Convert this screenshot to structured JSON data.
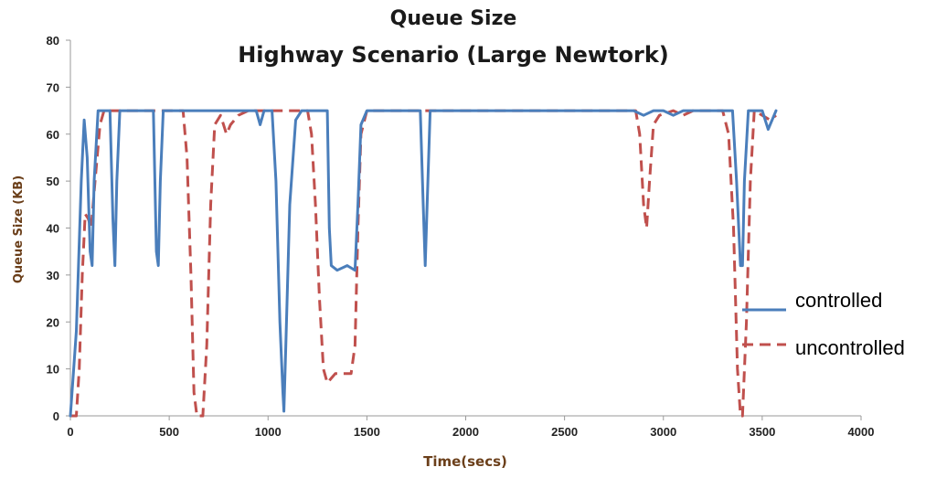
{
  "chart_data": {
    "type": "line",
    "title": "Queue Size",
    "subtitle": "Highway Scenario (Large Newtork)",
    "xlabel": "Time(secs)",
    "ylabel": "Queue Size (KB)",
    "xlim": [
      0,
      4000
    ],
    "ylim": [
      0,
      80
    ],
    "xticks": [
      0,
      500,
      1000,
      1500,
      2000,
      2500,
      3000,
      3500,
      4000
    ],
    "yticks": [
      0,
      10,
      20,
      30,
      40,
      50,
      60,
      70,
      80
    ],
    "grid": false,
    "legend_position": "right",
    "series": [
      {
        "name": "controlled",
        "color": "#4a7ebb",
        "style": "solid",
        "points": [
          [
            0,
            0
          ],
          [
            30,
            18
          ],
          [
            55,
            50
          ],
          [
            70,
            63
          ],
          [
            85,
            55
          ],
          [
            100,
            35
          ],
          [
            110,
            32
          ],
          [
            120,
            50
          ],
          [
            140,
            65
          ],
          [
            200,
            65
          ],
          [
            215,
            42
          ],
          [
            225,
            32
          ],
          [
            235,
            50
          ],
          [
            250,
            65
          ],
          [
            420,
            65
          ],
          [
            435,
            35
          ],
          [
            445,
            32
          ],
          [
            455,
            50
          ],
          [
            470,
            65
          ],
          [
            940,
            65
          ],
          [
            960,
            62
          ],
          [
            980,
            65
          ],
          [
            1020,
            65
          ],
          [
            1040,
            50
          ],
          [
            1060,
            20
          ],
          [
            1075,
            5
          ],
          [
            1080,
            1
          ],
          [
            1090,
            15
          ],
          [
            1110,
            45
          ],
          [
            1140,
            63
          ],
          [
            1170,
            65
          ],
          [
            1300,
            65
          ],
          [
            1310,
            40
          ],
          [
            1320,
            32
          ],
          [
            1350,
            31
          ],
          [
            1400,
            32
          ],
          [
            1440,
            31
          ],
          [
            1455,
            45
          ],
          [
            1470,
            62
          ],
          [
            1500,
            65
          ],
          [
            1770,
            65
          ],
          [
            1785,
            45
          ],
          [
            1795,
            32
          ],
          [
            1805,
            45
          ],
          [
            1820,
            65
          ],
          [
            2850,
            65
          ],
          [
            2900,
            64
          ],
          [
            2950,
            65
          ],
          [
            3000,
            65
          ],
          [
            3050,
            64
          ],
          [
            3100,
            65
          ],
          [
            3350,
            65
          ],
          [
            3370,
            50
          ],
          [
            3390,
            32
          ],
          [
            3400,
            32
          ],
          [
            3410,
            50
          ],
          [
            3430,
            65
          ],
          [
            3500,
            65
          ],
          [
            3530,
            61
          ],
          [
            3550,
            63
          ],
          [
            3570,
            65
          ]
        ]
      },
      {
        "name": "uncontrolled",
        "color": "#c0504d",
        "style": "dashed",
        "points": [
          [
            0,
            0
          ],
          [
            30,
            0
          ],
          [
            45,
            10
          ],
          [
            60,
            30
          ],
          [
            75,
            43
          ],
          [
            90,
            42
          ],
          [
            105,
            40
          ],
          [
            125,
            50
          ],
          [
            150,
            62
          ],
          [
            170,
            65
          ],
          [
            570,
            65
          ],
          [
            590,
            55
          ],
          [
            610,
            30
          ],
          [
            625,
            5
          ],
          [
            640,
            0
          ],
          [
            670,
            0
          ],
          [
            690,
            15
          ],
          [
            710,
            45
          ],
          [
            730,
            62
          ],
          [
            760,
            64
          ],
          [
            790,
            60
          ],
          [
            810,
            62
          ],
          [
            850,
            64
          ],
          [
            900,
            65
          ],
          [
            1200,
            65
          ],
          [
            1220,
            60
          ],
          [
            1240,
            45
          ],
          [
            1260,
            25
          ],
          [
            1280,
            10
          ],
          [
            1300,
            7
          ],
          [
            1320,
            8
          ],
          [
            1340,
            9
          ],
          [
            1380,
            9
          ],
          [
            1420,
            9
          ],
          [
            1440,
            15
          ],
          [
            1455,
            40
          ],
          [
            1470,
            60
          ],
          [
            1500,
            65
          ],
          [
            1550,
            65
          ],
          [
            1600,
            65
          ],
          [
            1650,
            65
          ],
          [
            1700,
            65
          ],
          [
            2860,
            65
          ],
          [
            2880,
            60
          ],
          [
            2900,
            45
          ],
          [
            2915,
            40
          ],
          [
            2930,
            50
          ],
          [
            2950,
            62
          ],
          [
            2980,
            64
          ],
          [
            3050,
            65
          ],
          [
            3100,
            64
          ],
          [
            3150,
            65
          ],
          [
            3300,
            65
          ],
          [
            3330,
            60
          ],
          [
            3355,
            40
          ],
          [
            3375,
            10
          ],
          [
            3390,
            0
          ],
          [
            3400,
            0
          ],
          [
            3420,
            20
          ],
          [
            3440,
            50
          ],
          [
            3460,
            65
          ],
          [
            3500,
            64
          ],
          [
            3540,
            63
          ],
          [
            3570,
            64
          ]
        ]
      }
    ]
  }
}
